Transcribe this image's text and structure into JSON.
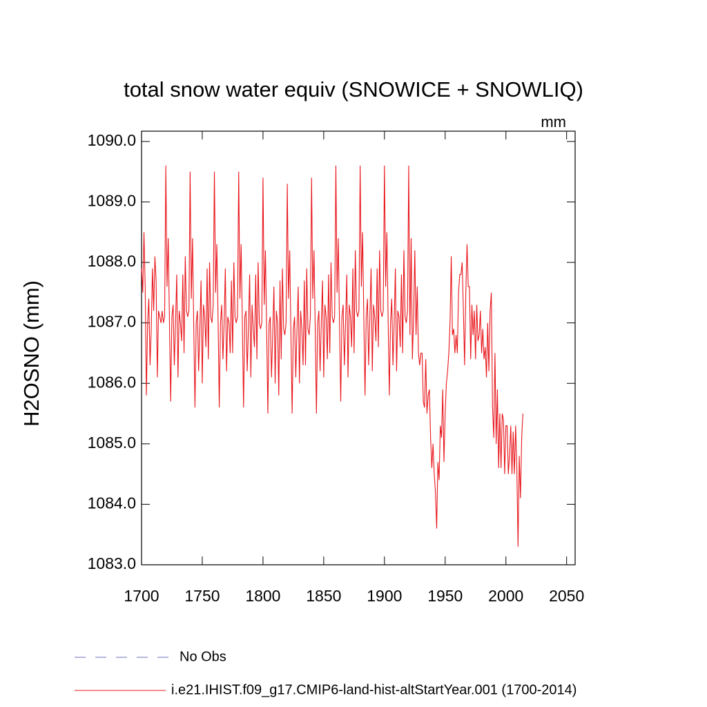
{
  "chart_data": {
    "type": "line",
    "title": "total snow water equiv (SNOWICE + SNOWLIQ)",
    "units": "mm",
    "y_label": "H2OSNO  (mm)",
    "xlim": [
      1700,
      2057
    ],
    "ylim": [
      1083,
      1090.17
    ],
    "xticks": [
      1700,
      1750,
      1800,
      1850,
      1900,
      1950,
      2000,
      2050
    ],
    "yticks": [
      {
        "value": 1083,
        "label": "1083.0"
      },
      {
        "value": 1084,
        "label": "1084.0"
      },
      {
        "value": 1085,
        "label": "1085.0"
      },
      {
        "value": 1086,
        "label": "1086.0"
      },
      {
        "value": 1087,
        "label": "1087.0"
      },
      {
        "value": 1088,
        "label": "1088.0"
      },
      {
        "value": 1089,
        "label": "1089.0"
      },
      {
        "value": 1090,
        "label": "1090.0"
      }
    ],
    "legend": [
      {
        "label": "No Obs",
        "color": "#8c8cc8",
        "style": "dashed"
      }
    ],
    "x": [
      1700,
      1701,
      1702,
      1703,
      1704,
      1705,
      1706,
      1707,
      1708,
      1709,
      1710,
      1711,
      1712,
      1713,
      1714,
      1715,
      1716,
      1717,
      1718,
      1719,
      1720,
      1721,
      1722,
      1723,
      1724,
      1725,
      1726,
      1727,
      1728,
      1729,
      1730,
      1731,
      1732,
      1733,
      1734,
      1735,
      1736,
      1737,
      1738,
      1739,
      1740,
      1741,
      1742,
      1743,
      1744,
      1745,
      1746,
      1747,
      1748,
      1749,
      1750,
      1751,
      1752,
      1753,
      1754,
      1755,
      1756,
      1757,
      1758,
      1759,
      1760,
      1761,
      1762,
      1763,
      1764,
      1765,
      1766,
      1767,
      1768,
      1769,
      1770,
      1771,
      1772,
      1773,
      1774,
      1775,
      1776,
      1777,
      1778,
      1779,
      1780,
      1781,
      1782,
      1783,
      1784,
      1785,
      1786,
      1787,
      1788,
      1789,
      1790,
      1791,
      1792,
      1793,
      1794,
      1795,
      1796,
      1797,
      1798,
      1799,
      1800,
      1801,
      1802,
      1803,
      1804,
      1805,
      1806,
      1807,
      1808,
      1809,
      1810,
      1811,
      1812,
      1813,
      1814,
      1815,
      1816,
      1817,
      1818,
      1819,
      1820,
      1821,
      1822,
      1823,
      1824,
      1825,
      1826,
      1827,
      1828,
      1829,
      1830,
      1831,
      1832,
      1833,
      1834,
      1835,
      1836,
      1837,
      1838,
      1839,
      1840,
      1841,
      1842,
      1843,
      1844,
      1845,
      1846,
      1847,
      1848,
      1849,
      1850,
      1851,
      1852,
      1853,
      1854,
      1855,
      1856,
      1857,
      1858,
      1859,
      1860,
      1861,
      1862,
      1863,
      1864,
      1865,
      1866,
      1867,
      1868,
      1869,
      1870,
      1871,
      1872,
      1873,
      1874,
      1875,
      1876,
      1877,
      1878,
      1879,
      1880,
      1881,
      1882,
      1883,
      1884,
      1885,
      1886,
      1887,
      1888,
      1889,
      1890,
      1891,
      1892,
      1893,
      1894,
      1895,
      1896,
      1897,
      1898,
      1899,
      1900,
      1901,
      1902,
      1903,
      1904,
      1905,
      1906,
      1907,
      1908,
      1909,
      1910,
      1911,
      1912,
      1913,
      1914,
      1915,
      1916,
      1917,
      1918,
      1919,
      1920,
      1921,
      1922,
      1923,
      1924,
      1925,
      1926,
      1927,
      1928,
      1929,
      1930,
      1931,
      1932,
      1933,
      1934,
      1935,
      1936,
      1937,
      1938,
      1939,
      1940,
      1941,
      1942,
      1943,
      1944,
      1945,
      1946,
      1947,
      1948,
      1949,
      1950,
      1951,
      1952,
      1953,
      1954,
      1955,
      1956,
      1957,
      1958,
      1959,
      1960,
      1961,
      1962,
      1963,
      1964,
      1965,
      1966,
      1967,
      1968,
      1969,
      1970,
      1971,
      1972,
      1973,
      1974,
      1975,
      1976,
      1977,
      1978,
      1979,
      1980,
      1981,
      1982,
      1983,
      1984,
      1985,
      1986,
      1987,
      1988,
      1989,
      1990,
      1991,
      1992,
      1993,
      1994,
      1995,
      1996,
      1997,
      1998,
      1999,
      2000,
      2001,
      2002,
      2003,
      2004,
      2005,
      2006,
      2007,
      2008,
      2009,
      2010,
      2011,
      2012,
      2013,
      2014
    ],
    "series": [
      {
        "name": "i.e21.IHIST.f09_g17.CMIP6-land-hist-altStartYear.001 (1700-2014)",
        "color": "#e8151b",
        "values": [
          1087.9,
          1087.5,
          1088.5,
          1087.6,
          1085.8,
          1087.0,
          1087.4,
          1086.3,
          1086.9,
          1087.9,
          1087.2,
          1088.1,
          1087.7,
          1086.1,
          1087.2,
          1087.1,
          1087.0,
          1087.2,
          1087.0,
          1087.1,
          1089.6,
          1087.6,
          1088.4,
          1087.0,
          1085.7,
          1087.1,
          1087.3,
          1086.3,
          1087.0,
          1087.8,
          1086.1,
          1087.2,
          1087.0,
          1086.7,
          1087.8,
          1086.5,
          1088.1,
          1087.2,
          1087.1,
          1087.2,
          1089.5,
          1087.4,
          1088.4,
          1086.9,
          1085.6,
          1087.0,
          1087.2,
          1086.2,
          1086.9,
          1087.7,
          1086.0,
          1087.3,
          1087.1,
          1086.6,
          1087.9,
          1086.4,
          1088.0,
          1087.1,
          1087.0,
          1087.3,
          1089.5,
          1087.5,
          1088.3,
          1087.1,
          1085.6,
          1087.0,
          1087.3,
          1086.4,
          1087.0,
          1087.9,
          1086.2,
          1087.1,
          1087.0,
          1086.5,
          1087.7,
          1086.5,
          1088.0,
          1087.1,
          1087.0,
          1087.1,
          1089.5,
          1087.4,
          1088.3,
          1087.0,
          1085.6,
          1087.1,
          1087.2,
          1086.2,
          1086.9,
          1087.8,
          1086.1,
          1087.3,
          1086.9,
          1086.6,
          1087.8,
          1086.4,
          1088.0,
          1087.0,
          1086.9,
          1087.0,
          1089.4,
          1087.3,
          1088.2,
          1086.9,
          1085.5,
          1087.0,
          1087.1,
          1086.1,
          1086.8,
          1087.6,
          1086.0,
          1087.2,
          1087.0,
          1085.8,
          1087.7,
          1086.4,
          1087.9,
          1086.9,
          1086.8,
          1087.0,
          1089.3,
          1087.4,
          1088.2,
          1086.8,
          1085.5,
          1086.9,
          1087.1,
          1086.1,
          1086.9,
          1087.6,
          1086.0,
          1087.2,
          1086.9,
          1086.3,
          1087.7,
          1086.3,
          1087.9,
          1086.9,
          1086.8,
          1087.1,
          1089.4,
          1087.4,
          1088.2,
          1086.9,
          1085.5,
          1087.0,
          1087.2,
          1086.2,
          1087.0,
          1087.7,
          1086.1,
          1087.3,
          1087.1,
          1086.4,
          1087.8,
          1086.5,
          1088.0,
          1087.1,
          1087.0,
          1087.1,
          1089.6,
          1087.5,
          1088.4,
          1087.0,
          1085.7,
          1087.1,
          1087.3,
          1086.3,
          1087.0,
          1087.8,
          1086.1,
          1087.3,
          1087.1,
          1086.6,
          1087.9,
          1086.5,
          1088.2,
          1087.2,
          1087.1,
          1087.2,
          1089.6,
          1087.6,
          1088.5,
          1087.1,
          1085.8,
          1087.1,
          1087.4,
          1086.3,
          1087.1,
          1087.9,
          1086.2,
          1087.3,
          1087.1,
          1086.7,
          1087.9,
          1086.6,
          1088.2,
          1087.2,
          1087.1,
          1087.2,
          1089.6,
          1087.6,
          1088.5,
          1087.1,
          1085.8,
          1087.0,
          1087.4,
          1086.3,
          1087.0,
          1087.9,
          1086.2,
          1087.2,
          1087.1,
          1086.6,
          1087.8,
          1086.5,
          1088.2,
          1087.1,
          1087.0,
          1087.2,
          1089.6,
          1086.8,
          1088.4,
          1086.4,
          1087.1,
          1088.2,
          1086.8,
          1087.6,
          1086.5,
          1086.3,
          1086.5,
          1086.5,
          1085.7,
          1085.6,
          1086.4,
          1085.5,
          1085.8,
          1085.9,
          1085.1,
          1084.6,
          1085.0,
          1084.5,
          1084.2,
          1083.6,
          1084.7,
          1084.4,
          1085.3,
          1085.1,
          1085.9,
          1084.7,
          1085.5,
          1086.0,
          1086.2,
          1086.5,
          1087.0,
          1088.1,
          1086.8,
          1086.9,
          1086.5,
          1086.8,
          1086.5,
          1087.5,
          1087.8,
          1087.8,
          1088.0,
          1087.2,
          1086.3,
          1087.5,
          1088.3,
          1087.6,
          1087.6,
          1086.4,
          1087.3,
          1086.8,
          1087.2,
          1086.4,
          1087.3,
          1086.7,
          1086.8,
          1087.2,
          1086.5,
          1086.9,
          1086.4,
          1086.6,
          1086.1,
          1087.0,
          1086.2,
          1087.2,
          1087.5,
          1085.6,
          1085.1,
          1086.5,
          1085.0,
          1085.9,
          1084.6,
          1085.5,
          1084.6,
          1085.5,
          1085.4,
          1084.5,
          1085.3,
          1085.3,
          1084.5,
          1084.8,
          1085.3,
          1084.5,
          1085.2,
          1084.5,
          1085.3,
          1084.6,
          1083.3,
          1084.8,
          1084.1,
          1085.1,
          1085.5
        ]
      }
    ]
  }
}
